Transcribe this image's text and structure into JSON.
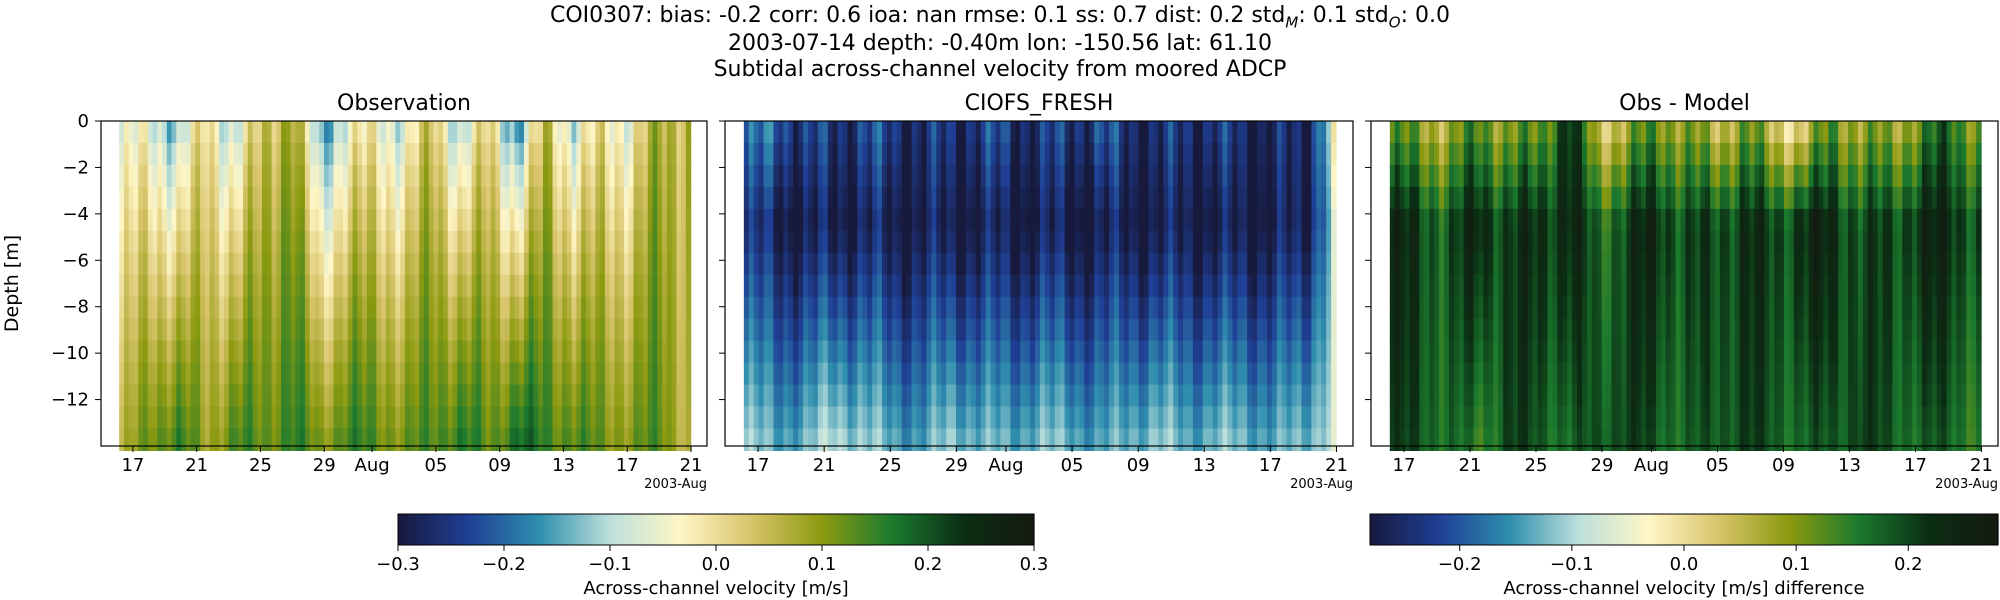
{
  "title": {
    "line1_prefix": "COI0307: bias: -0.2  corr: 0.6  ioa: nan  rmse: 0.1  ss: 0.7  dist: 0.2  std",
    "line1_sub_m": "M",
    "line1_mid": ": 0.1  std",
    "line1_sub_o": "O",
    "line1_suffix": ": 0.0",
    "line2": "2003-07-14 depth: -0.40m lon: -150.56 lat: 61.10",
    "line3": "Subtidal across-channel velocity from moored ADCP"
  },
  "colors": {
    "diverging_map": [
      "#171a3d",
      "#1f3f96",
      "#2f8fae",
      "#bde0dc",
      "#fff6c6",
      "#d8c46a",
      "#8c9a10",
      "#1b7a2e",
      "#0b2e14",
      "#141a10"
    ]
  },
  "chart_data": [
    {
      "type": "heatmap",
      "title": "Observation",
      "ylabel": "Depth [m]",
      "ylim": [
        -14,
        0
      ],
      "yticks": [
        0,
        -2,
        -4,
        -6,
        -8,
        -10,
        -12
      ],
      "xtick_labels": [
        "17",
        "21",
        "25",
        "29",
        "Aug",
        "05",
        "09",
        "13",
        "17",
        "21"
      ],
      "x_offset_label": "2003-Aug",
      "x_range": [
        "2003-07-15",
        "2003-08-22"
      ],
      "depth_levels": 15,
      "field": {
        "surface": [
          -0.08,
          -0.05,
          -0.12,
          0.02,
          -0.1,
          0.05,
          0.1,
          -0.15,
          -0.05,
          -0.02,
          -0.08,
          0.06,
          -0.12,
          0.04,
          -0.18,
          0.08,
          -0.1,
          0.02,
          -0.06,
          0.1,
          0.05
        ],
        "bottom": [
          0.05,
          0.12,
          0.15,
          0.08,
          0.14,
          0.12,
          0.16,
          0.1,
          0.15,
          0.13,
          0.11,
          0.14,
          0.16,
          0.12,
          0.18,
          0.15,
          0.13,
          0.12,
          0.1,
          0.14,
          0.05
        ]
      }
    },
    {
      "type": "heatmap",
      "title": "CIOFS_FRESH",
      "ylim": [
        -14,
        0
      ],
      "yticks": [
        0,
        -2,
        -4,
        -6,
        -8,
        -10,
        -12
      ],
      "xtick_labels": [
        "17",
        "21",
        "25",
        "29",
        "Aug",
        "05",
        "09",
        "13",
        "17",
        "21"
      ],
      "x_offset_label": "2003-Aug",
      "x_range": [
        "2003-07-15",
        "2003-08-22"
      ],
      "depth_levels": 15,
      "field": {
        "surface": [
          -0.22,
          -0.2,
          -0.25,
          -0.26,
          -0.23,
          -0.25,
          -0.27,
          -0.26,
          -0.24,
          -0.25,
          -0.26,
          -0.25,
          -0.23,
          -0.26,
          -0.27,
          -0.26,
          -0.25,
          -0.28,
          -0.27,
          -0.3,
          -0.05
        ],
        "mid": [
          -0.27,
          -0.28,
          -0.3,
          -0.29,
          -0.28,
          -0.3,
          -0.29,
          -0.3,
          -0.29,
          -0.3,
          -0.29,
          -0.3,
          -0.3,
          -0.29,
          -0.3,
          -0.29,
          -0.3,
          -0.3,
          -0.29,
          -0.3,
          -0.1
        ],
        "bottom": [
          -0.12,
          -0.15,
          -0.14,
          -0.1,
          -0.12,
          -0.15,
          -0.16,
          -0.12,
          -0.14,
          -0.15,
          -0.13,
          -0.14,
          -0.16,
          -0.14,
          -0.12,
          -0.15,
          -0.13,
          -0.14,
          -0.15,
          -0.14,
          -0.08
        ]
      }
    },
    {
      "type": "heatmap",
      "title": "Obs - Model",
      "ylim": [
        -14,
        0
      ],
      "yticks": [
        0,
        -2,
        -4,
        -6,
        -8,
        -10,
        -12
      ],
      "xtick_labels": [
        "17",
        "21",
        "25",
        "29",
        "Aug",
        "05",
        "09",
        "13",
        "17",
        "21"
      ],
      "x_offset_label": "2003-Aug",
      "x_range": [
        "2003-07-15",
        "2003-08-22"
      ],
      "depth_levels": 15,
      "field": {
        "surface": [
          0.12,
          0.1,
          0.08,
          0.15,
          0.1,
          0.12,
          0.25,
          0.05,
          0.08,
          0.14,
          0.1,
          0.06,
          0.12,
          0.05,
          0.02,
          0.15,
          0.08,
          0.1,
          0.12,
          0.2,
          0.1
        ],
        "mid": [
          0.25,
          0.22,
          0.2,
          0.26,
          0.22,
          0.24,
          0.26,
          0.18,
          0.22,
          0.26,
          0.2,
          0.22,
          0.24,
          0.22,
          0.24,
          0.26,
          0.2,
          0.22,
          0.24,
          0.26,
          0.2
        ],
        "bottom": [
          0.22,
          0.2,
          0.18,
          0.15,
          0.22,
          0.2,
          0.18,
          0.2,
          0.22,
          0.2,
          0.18,
          0.2,
          0.22,
          0.2,
          0.18,
          0.2,
          0.22,
          0.2,
          0.18,
          0.2,
          0.15
        ]
      }
    }
  ],
  "colorbars": [
    {
      "label": "Across-channel velocity [m/s]",
      "range": [
        -0.3,
        0.3
      ],
      "ticks": [
        "−0.3",
        "−0.2",
        "−0.1",
        "0.0",
        "0.1",
        "0.2",
        "0.3"
      ]
    },
    {
      "label": "Across-channel velocity [m/s] difference",
      "range": [
        -0.28,
        0.28
      ],
      "ticks": [
        "−0.2",
        "−0.1",
        "0.0",
        "0.1",
        "0.2"
      ]
    }
  ]
}
